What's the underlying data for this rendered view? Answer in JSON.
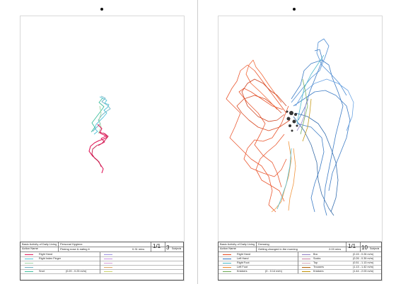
{
  "left": {
    "header": {
      "col1_label": "Basic Activity of Daily Living",
      "col2_label": "Action Name",
      "category": "Personal Hygiene",
      "action": "Picking nose & eating it",
      "duration": "0.31 mins",
      "page": "1/1",
      "subjects": "3",
      "subjects_label": "Subjects"
    },
    "legend": [
      {
        "label": "Right Hand",
        "range": "",
        "color": "#e0195a"
      },
      {
        "label": "Right Index Finger",
        "range": "",
        "color": "#4fc3d8"
      },
      {
        "label": "",
        "range": "",
        "color": "#9fd5a5"
      },
      {
        "label": "",
        "range": "",
        "color": "#6fb3c2"
      },
      {
        "label": "Snot",
        "range": "(0.20 - 0.23 m/m)",
        "color": "#40bf9f"
      }
    ],
    "legend_right": [
      {
        "label": "",
        "color": "#9a8fe0"
      },
      {
        "label": "",
        "color": "#c38ee2"
      },
      {
        "label": "",
        "color": "#d59ad9"
      },
      {
        "label": "",
        "color": "#e0a86b"
      },
      {
        "label": "",
        "color": "#c9d36a"
      }
    ]
  },
  "right": {
    "header": {
      "col1_label": "Basic Activity of Daily Living",
      "col2_label": "Action Name",
      "category": "Dressing",
      "action": "Getting changed in the morning",
      "duration": "2:03 mins",
      "page": "1/1",
      "subjects": "10",
      "subjects_label": "Subjects"
    },
    "legend": [
      {
        "label": "Right Hand",
        "range": "",
        "color": "#e8471b"
      },
      {
        "label": "Left Hand",
        "range": "",
        "color": "#2a6fbf"
      },
      {
        "label": "Right Foot",
        "range": "",
        "color": "#3fb6c8"
      },
      {
        "label": "Left Foot",
        "range": "",
        "color": "#f08a2a"
      },
      {
        "label": "Knickers",
        "range": "(0 - 0.14 m/m)",
        "color": "#6aa84f"
      }
    ],
    "legend_right": [
      {
        "label": "Bra",
        "range": "(0.15 - 0.26 m/m)",
        "color": "#8e7cc3"
      },
      {
        "label": "Socks",
        "range": "(0.26 - 0.39 m/m)",
        "color": "#c27ba0"
      },
      {
        "label": "Top",
        "range": "(0.51 - 1.13 m/m)",
        "color": "#d5a6bd"
      },
      {
        "label": "Trousers",
        "range": "(1.13 - 1.42 m/m)",
        "color": "#b45f06"
      },
      {
        "label": "Knickers",
        "range": "(1.44 - 2.03 m/m)",
        "color": "#bf9000"
      }
    ]
  }
}
